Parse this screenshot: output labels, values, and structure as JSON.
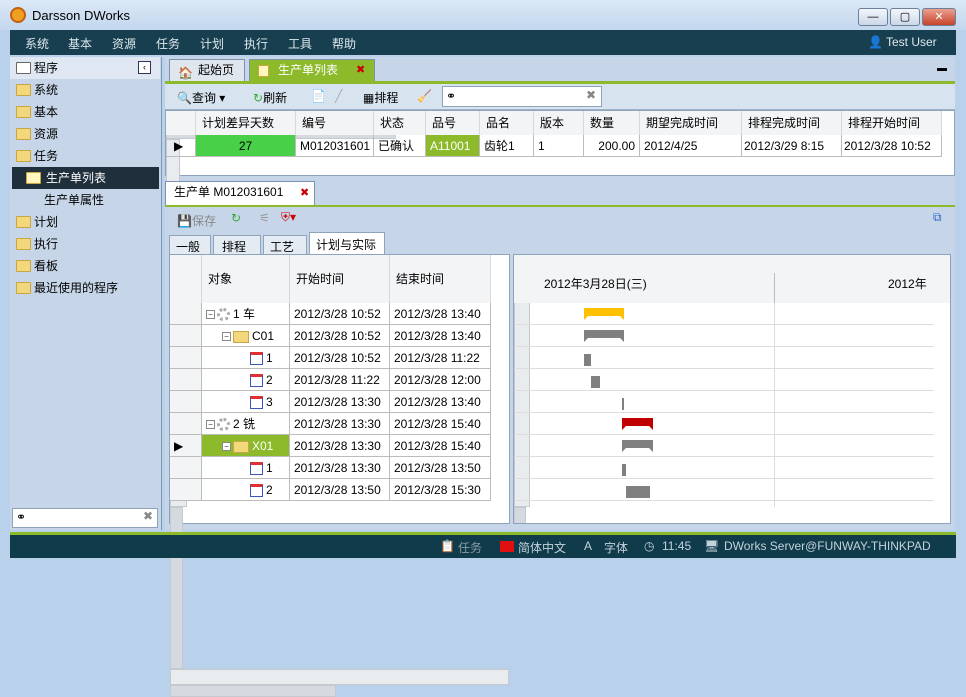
{
  "window": {
    "title": "Darsson DWorks"
  },
  "menu": [
    "系统",
    "基本",
    "资源",
    "任务",
    "计划",
    "执行",
    "工具",
    "帮助"
  ],
  "user": "Test User",
  "sidebar": {
    "header": "程序",
    "items": [
      "系统",
      "基本",
      "资源",
      "任务",
      "生产单列表",
      "生产单属性",
      "计划",
      "执行",
      "看板",
      "最近使用的程序"
    ],
    "search_value": ""
  },
  "tabs": [
    "起始页",
    "生产单列表"
  ],
  "toolbar": {
    "query": "查询",
    "refresh": "刷新",
    "schedule": "排程",
    "search_value": ""
  },
  "list": {
    "columns": [
      "计划差异天数",
      "编号",
      "状态",
      "品号",
      "品名",
      "版本",
      "数量",
      "期望完成时间",
      "排程完成时间",
      "排程开始时间"
    ],
    "rows": [
      [
        "27",
        "M012031601",
        "已确认",
        "A11001",
        "齿轮1",
        "1",
        "200.00",
        "2012/4/25",
        "2012/3/29 8:15",
        "2012/3/28 10:52"
      ]
    ]
  },
  "detail": {
    "tab": "生产单 M012031601",
    "save": "保存",
    "subtabs": [
      "一般",
      "排程",
      "工艺",
      "计划与实际"
    ],
    "columns": [
      "对象",
      "开始时间",
      "结束时间"
    ],
    "rows": [
      {
        "name": "1 车",
        "start": "2012/3/28 10:52",
        "end": "2012/3/28 13:40",
        "level": 0,
        "type": "gear"
      },
      {
        "name": "C01",
        "start": "2012/3/28 10:52",
        "end": "2012/3/28 13:40",
        "level": 1,
        "type": "folder"
      },
      {
        "name": "1",
        "start": "2012/3/28 10:52",
        "end": "2012/3/28 11:22",
        "level": 2,
        "type": "task"
      },
      {
        "name": "2",
        "start": "2012/3/28 11:22",
        "end": "2012/3/28 12:00",
        "level": 2,
        "type": "task"
      },
      {
        "name": "3",
        "start": "2012/3/28 13:30",
        "end": "2012/3/28 13:40",
        "level": 2,
        "type": "task"
      },
      {
        "name": "2 铣",
        "start": "2012/3/28 13:30",
        "end": "2012/3/28 15:40",
        "level": 0,
        "type": "gear"
      },
      {
        "name": "X01",
        "start": "2012/3/28 13:30",
        "end": "2012/3/28 15:40",
        "level": 1,
        "type": "folder",
        "selected": true
      },
      {
        "name": "1",
        "start": "2012/3/28 13:30",
        "end": "2012/3/28 13:50",
        "level": 2,
        "type": "task"
      },
      {
        "name": "2",
        "start": "2012/3/28 13:50",
        "end": "2012/3/28 15:30",
        "level": 2,
        "type": "task"
      }
    ],
    "gantt_headers": [
      "2012年3月28日(三)",
      "2012年"
    ],
    "colors": {
      "op": "#ffc000",
      "group": "#808080",
      "selected_op": "#c00000"
    }
  },
  "status": {
    "task": "任务",
    "lang": "简体中文",
    "font": "字体",
    "time": "11:45",
    "server": "DWorks Server@FUNWAY-THINKPAD"
  }
}
